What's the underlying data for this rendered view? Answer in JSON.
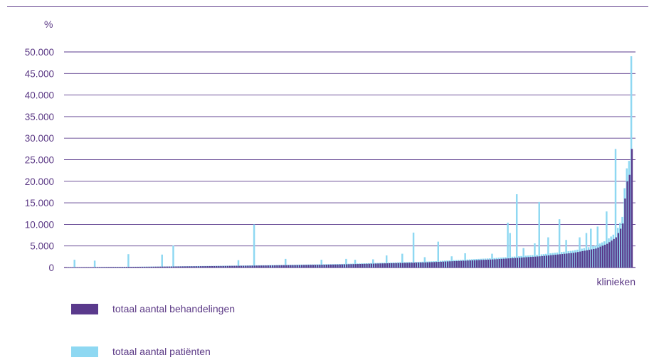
{
  "chart_data": {
    "type": "bar",
    "y_unit_label": "%",
    "xlabel": "klinieken",
    "ylim": [
      0,
      50000
    ],
    "y_ticks": [
      {
        "value": 0,
        "label": "0"
      },
      {
        "value": 5000,
        "label": "5.000"
      },
      {
        "value": 10000,
        "label": "10.000"
      },
      {
        "value": 15000,
        "label": "15.000"
      },
      {
        "value": 20000,
        "label": "20.000"
      },
      {
        "value": 25000,
        "label": "25.000"
      },
      {
        "value": 30000,
        "label": "30.000"
      },
      {
        "value": 35000,
        "label": "35.000"
      },
      {
        "value": 40000,
        "label": "40.000"
      },
      {
        "value": 45000,
        "label": "45.000"
      },
      {
        "value": 50000,
        "label": "50.000"
      }
    ],
    "grid": true,
    "legend_position": "bottom-left",
    "n_clinics": 250,
    "series": [
      {
        "name": "totaal aantal behandelingen",
        "color": "#5a3a8c",
        "trend_points": [
          [
            0,
            50
          ],
          [
            40,
            200
          ],
          [
            80,
            420
          ],
          [
            120,
            700
          ],
          [
            160,
            1200
          ],
          [
            190,
            1900
          ],
          [
            210,
            2600
          ],
          [
            225,
            3400
          ],
          [
            235,
            4400
          ],
          [
            240,
            5500
          ],
          [
            244,
            7000
          ],
          [
            246,
            9000
          ],
          [
            247,
            10200
          ],
          [
            248,
            16000
          ],
          [
            249,
            20000
          ],
          [
            250,
            21500
          ],
          [
            251,
            27500
          ]
        ]
      },
      {
        "name": "totaal aantal patiënten",
        "color": "#8ed8f2",
        "baseline_ratio": 1.15,
        "spikes": [
          {
            "clinic": 3,
            "value": 1800
          },
          {
            "clinic": 12,
            "value": 1600
          },
          {
            "clinic": 27,
            "value": 3100
          },
          {
            "clinic": 42,
            "value": 3000
          },
          {
            "clinic": 47,
            "value": 5100
          },
          {
            "clinic": 76,
            "value": 1700
          },
          {
            "clinic": 83,
            "value": 10000
          },
          {
            "clinic": 97,
            "value": 2000
          },
          {
            "clinic": 113,
            "value": 1800
          },
          {
            "clinic": 124,
            "value": 2000
          },
          {
            "clinic": 128,
            "value": 1800
          },
          {
            "clinic": 136,
            "value": 1900
          },
          {
            "clinic": 142,
            "value": 2800
          },
          {
            "clinic": 149,
            "value": 3200
          },
          {
            "clinic": 154,
            "value": 8100
          },
          {
            "clinic": 159,
            "value": 2400
          },
          {
            "clinic": 165,
            "value": 6000
          },
          {
            "clinic": 171,
            "value": 2600
          },
          {
            "clinic": 177,
            "value": 3300
          },
          {
            "clinic": 189,
            "value": 3200
          },
          {
            "clinic": 196,
            "value": 10400
          },
          {
            "clinic": 197,
            "value": 8000
          },
          {
            "clinic": 200,
            "value": 17000
          },
          {
            "clinic": 203,
            "value": 4500
          },
          {
            "clinic": 208,
            "value": 5600
          },
          {
            "clinic": 210,
            "value": 15200
          },
          {
            "clinic": 214,
            "value": 7000
          },
          {
            "clinic": 219,
            "value": 11200
          },
          {
            "clinic": 222,
            "value": 6400
          },
          {
            "clinic": 228,
            "value": 7000
          },
          {
            "clinic": 231,
            "value": 8000
          },
          {
            "clinic": 233,
            "value": 9000
          },
          {
            "clinic": 236,
            "value": 9500
          },
          {
            "clinic": 240,
            "value": 13000
          },
          {
            "clinic": 244,
            "value": 27500
          },
          {
            "clinic": 251,
            "value": 49000
          }
        ]
      }
    ]
  },
  "legend": [
    {
      "label": "totaal aantal behandelingen",
      "color": "#5a3a8c"
    },
    {
      "label": "totaal aantal patiënten",
      "color": "#8ed8f2"
    }
  ]
}
